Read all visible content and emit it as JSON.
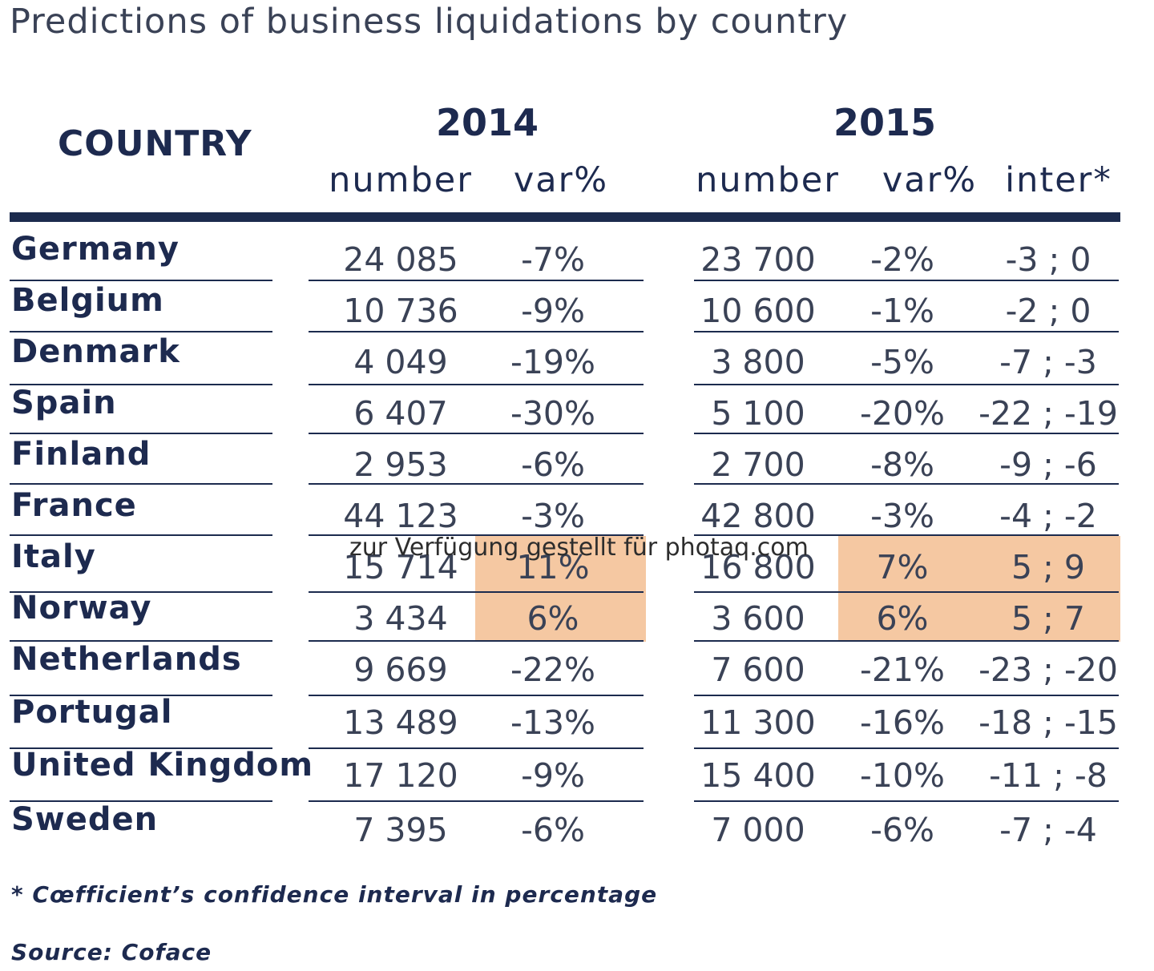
{
  "chart_data": {
    "type": "table",
    "title": "Predictions of business liquidations by country",
    "header": {
      "country": "COUNTRY",
      "year_2014": "2014",
      "year_2015": "2015",
      "columns": [
        "number",
        "var%",
        "number",
        "var%",
        "inter*"
      ]
    },
    "rows": [
      {
        "country": "Germany",
        "n2014": "24 085",
        "v2014": "-7%",
        "n2015": "23 700",
        "v2015": "-2%",
        "inter": "-3 ; 0"
      },
      {
        "country": "Belgium",
        "n2014": "10 736",
        "v2014": "-9%",
        "n2015": "10 600",
        "v2015": "-1%",
        "inter": "-2 ; 0"
      },
      {
        "country": "Denmark",
        "n2014": "4 049",
        "v2014": "-19%",
        "n2015": "3 800",
        "v2015": "-5%",
        "inter": "-7 ; -3"
      },
      {
        "country": "Spain",
        "n2014": "6 407",
        "v2014": "-30%",
        "n2015": "5 100",
        "v2015": "-20%",
        "inter": "-22 ; -19"
      },
      {
        "country": "Finland",
        "n2014": "2 953",
        "v2014": "-6%",
        "n2015": "2 700",
        "v2015": "-8%",
        "inter": "-9 ; -6"
      },
      {
        "country": "France",
        "n2014": "44 123",
        "v2014": "-3%",
        "n2015": "42 800",
        "v2015": "-3%",
        "inter": "-4 ; -2"
      },
      {
        "country": "Italy",
        "n2014": "15 714",
        "v2014": "11%",
        "n2015": "16 800",
        "v2015": "7%",
        "inter": "5 ; 9"
      },
      {
        "country": "Norway",
        "n2014": "3 434",
        "v2014": "6%",
        "n2015": "3 600",
        "v2015": "6%",
        "inter": "5 ; 7"
      },
      {
        "country": "Netherlands",
        "n2014": "9 669",
        "v2014": "-22%",
        "n2015": "7 600",
        "v2015": "-21%",
        "inter": "-23 ; -20"
      },
      {
        "country": "Portugal",
        "n2014": "13 489",
        "v2014": "-13%",
        "n2015": "11 300",
        "v2015": "-16%",
        "inter": "-18 ; -15"
      },
      {
        "country": "United Kingdom",
        "n2014": "17 120",
        "v2014": "-9%",
        "n2015": "15 400",
        "v2015": "-10%",
        "inter": "-11 ; -8"
      },
      {
        "country": "Sweden",
        "n2014": "7 395",
        "v2014": "-6%",
        "n2015": "7 000",
        "v2015": "-6%",
        "inter": "-7 ; -4"
      }
    ],
    "highlighted_countries": [
      "Italy",
      "Norway"
    ],
    "highlight_color": "#f5c8a2",
    "accent_color": "#1c2b4e"
  },
  "watermark": "zur Verfügung gestellt für photaq.com",
  "footnote": "* Cœfficient’s confidence interval in percentage",
  "source": "Source: Coface"
}
